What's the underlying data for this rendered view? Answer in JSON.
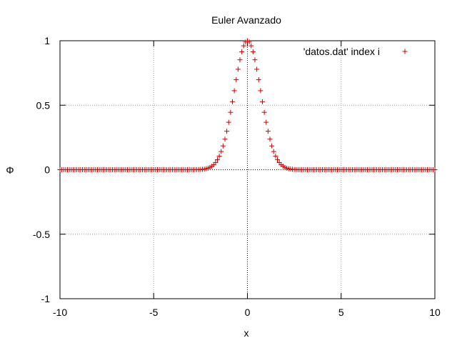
{
  "chart_data": {
    "type": "scatter",
    "title": "Euler Avanzado",
    "xlabel": "x",
    "ylabel": "Φ",
    "xlim": [
      -10,
      10
    ],
    "ylim": [
      -1,
      1
    ],
    "grid": true,
    "legend_placement": "top-right",
    "x_ticks": [
      "-10",
      "-5",
      "0",
      "5",
      "10"
    ],
    "y_ticks": [
      "1",
      "0.5",
      "0",
      "-0.5",
      "-1"
    ],
    "x_tick_values": [
      -10,
      -5,
      0,
      5,
      10
    ],
    "y_tick_values": [
      1,
      0.5,
      0,
      -0.5,
      -1
    ],
    "series": [
      {
        "name": "'datos.dat' index i",
        "color": "#cc0000",
        "marker": "plus",
        "x_start": -10,
        "x_end": 10,
        "x_step": 0.1,
        "function": "gaussian",
        "peak_x": 0,
        "peak_y": 1,
        "width": 1
      }
    ]
  }
}
